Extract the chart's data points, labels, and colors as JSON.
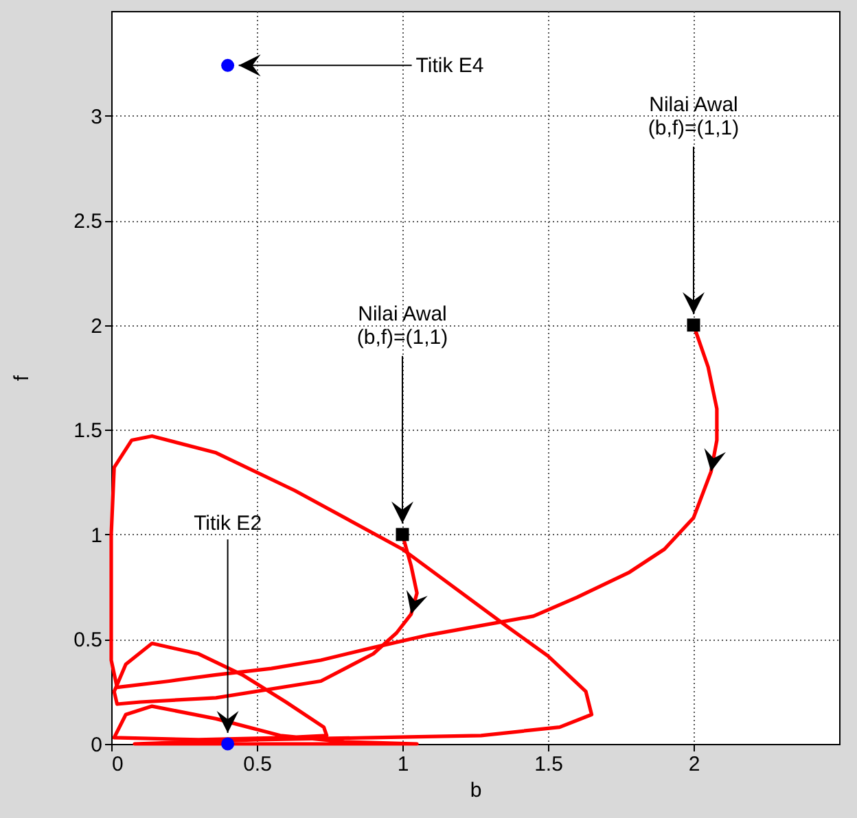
{
  "chart_data": {
    "type": "line",
    "xlabel": "b",
    "ylabel": "f",
    "xlim": [
      0,
      2.5
    ],
    "ylim": [
      0,
      3.5
    ],
    "xticks": [
      0,
      0.5,
      1,
      1.5,
      2
    ],
    "yticks": [
      0,
      0.5,
      1,
      1.5,
      2,
      2.5,
      3
    ],
    "grid": true,
    "line_style": "solid",
    "marker": "none",
    "series": [
      {
        "color": "#ff0000",
        "x": [
          2,
          2.05,
          2.08,
          2.08,
          2.06,
          2.0,
          1.9,
          1.78,
          1.6,
          1.45,
          1.25,
          1.09,
          0.9,
          0.72,
          0.55,
          0.36,
          0.2,
          0.02,
          0.0,
          0.0,
          0.0,
          0.01,
          0.07,
          0.14,
          0.36,
          0.63,
          1.0,
          1.36,
          1.5,
          1.63,
          1.65,
          1.54,
          1.27,
          0.9,
          0.5,
          0.08,
          0.4
        ],
        "values": [
          2,
          1.8,
          1.6,
          1.45,
          1.3,
          1.08,
          0.93,
          0.82,
          0.7,
          0.61,
          0.56,
          0.52,
          0.46,
          0.4,
          0.36,
          0.33,
          0.3,
          0.27,
          0.4,
          0.7,
          1.0,
          1.32,
          1.45,
          1.47,
          1.39,
          1.21,
          0.93,
          0.56,
          0.42,
          0.25,
          0.14,
          0.08,
          0.04,
          0.03,
          0.02,
          0.0,
          0.0
        ]
      },
      {
        "color": "#ff0000",
        "x": [
          1,
          1.03,
          1.05,
          1.03,
          0.98,
          0.9,
          0.72,
          0.36,
          0.1,
          0.02,
          0.01,
          0.05,
          0.14,
          0.3,
          0.45,
          0.6,
          0.73,
          0.74,
          0.6,
          0.3,
          0.01,
          0.05,
          0.14,
          0.36,
          0.58,
          0.8,
          1.05,
          0.4
        ],
        "values": [
          1,
          0.85,
          0.72,
          0.62,
          0.53,
          0.43,
          0.3,
          0.22,
          0.2,
          0.19,
          0.25,
          0.38,
          0.48,
          0.43,
          0.33,
          0.2,
          0.08,
          0.04,
          0.03,
          0.02,
          0.03,
          0.14,
          0.18,
          0.12,
          0.04,
          0.01,
          0.0,
          0.0
        ]
      },
      {
        "type": "scatter",
        "marker": "square",
        "color": "#000000",
        "x": [
          1,
          2
        ],
        "values": [
          1,
          2
        ]
      },
      {
        "type": "scatter",
        "marker": "circle",
        "color": "#0000ff",
        "x": [
          0.4,
          0.4
        ],
        "values": [
          3.24,
          0
        ]
      }
    ],
    "annotations": [
      {
        "text": "Titik E4",
        "x": 0.4,
        "y": 3.24
      },
      {
        "text": "Nilai Awal\n(b,f)=(1,1)",
        "x": 2,
        "y": 2
      },
      {
        "text": "Nilai Awal\n(b,f)=(1,1)",
        "x": 1,
        "y": 1
      },
      {
        "text": "Titik E2",
        "x": 0.4,
        "y": 0
      }
    ]
  }
}
